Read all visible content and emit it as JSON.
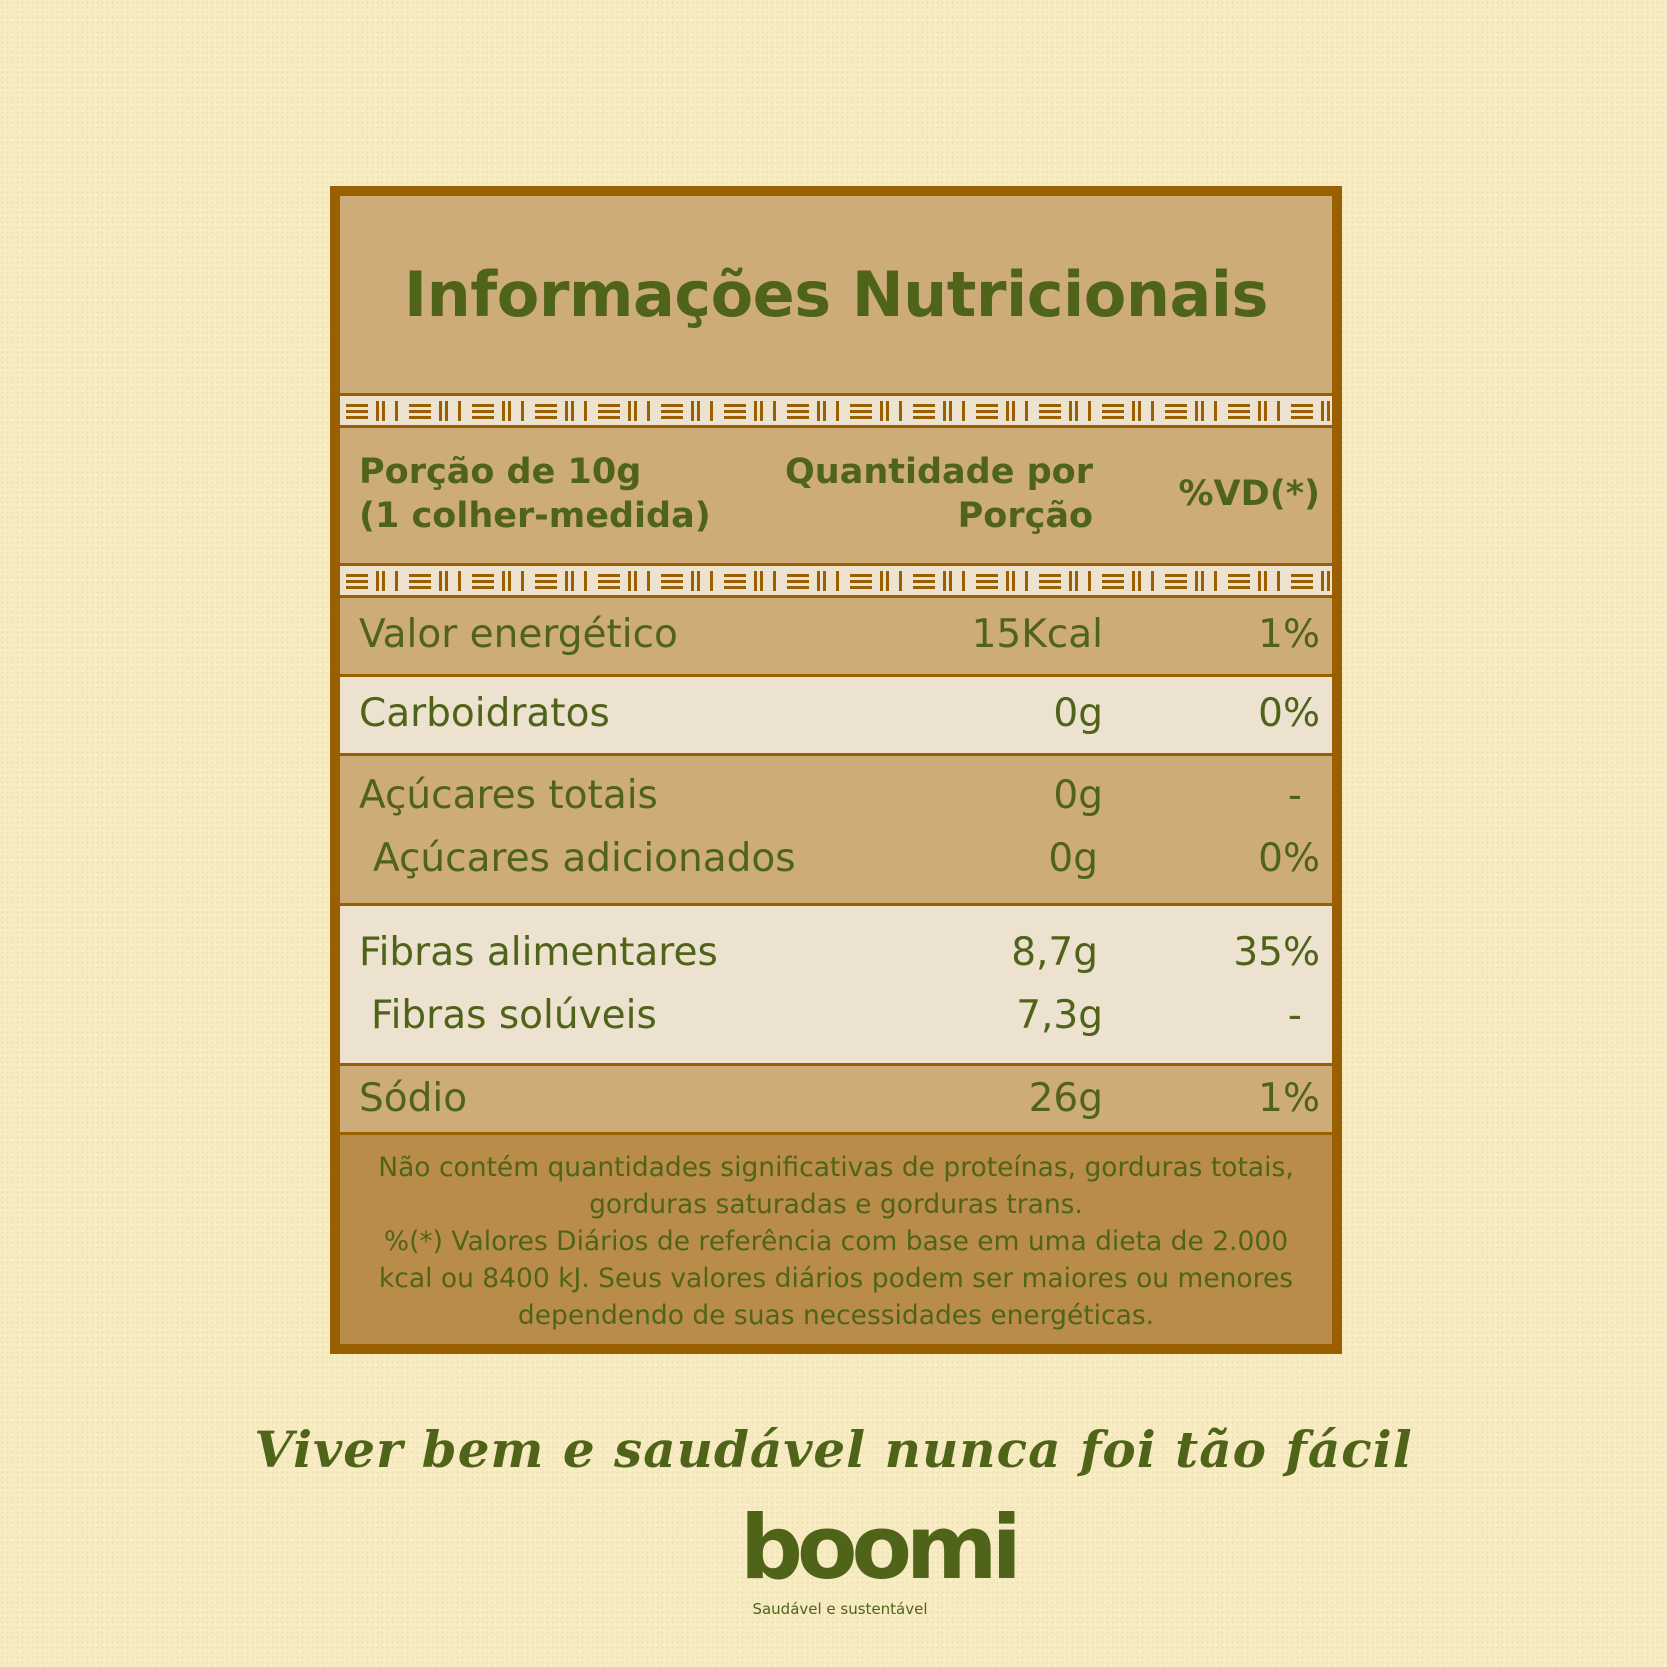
{
  "colors": {
    "border": "#9a5f00",
    "panel": "#cdac7a",
    "light_row": "#ede1d0",
    "footer": "#b98c4a",
    "text_green": "#4f6419",
    "page_bg": "#f7ebc1"
  },
  "title": "Informações Nutricionais",
  "header": {
    "serving_line1": "Porção de 10g",
    "serving_line2": "(1 colher-medida)",
    "qty_line1": "Quantidade por",
    "qty_line2": "Porção",
    "dv": "%VD(*)"
  },
  "rows": [
    {
      "label": "Valor energético",
      "qty": "15Kcal",
      "dv": "1%"
    },
    {
      "label": "Carboidratos",
      "qty": "0g",
      "dv": "0%"
    },
    {
      "label": "Açúcares totais",
      "qty": "0g",
      "dv": "-"
    },
    {
      "label": "Açúcares adicionados",
      "qty": "0g",
      "dv": "0%"
    },
    {
      "label": "Fibras alimentares",
      "qty": "8,7g",
      "dv": "35%"
    },
    {
      "label": "Fibras solúveis",
      "qty": "7,3g",
      "dv": "-"
    },
    {
      "label": "Sódio",
      "qty": "26g",
      "dv": "1%"
    }
  ],
  "footer": {
    "line1": "Não contém quantidades significativas de proteínas, gorduras totais,",
    "line2": "gorduras saturadas e gorduras trans.",
    "line3": "%(*) Valores Diários de referência com base em uma dieta de 2.000",
    "line4": "kcal ou 8400 kJ. Seus valores diários podem ser maiores ou menores",
    "line5": "dependendo de suas necessidades energéticas."
  },
  "tagline": "Viver bem e saudável nunca foi tão fácil",
  "brand": {
    "name": "boomi",
    "slogan": "Saudável e sustentável"
  }
}
